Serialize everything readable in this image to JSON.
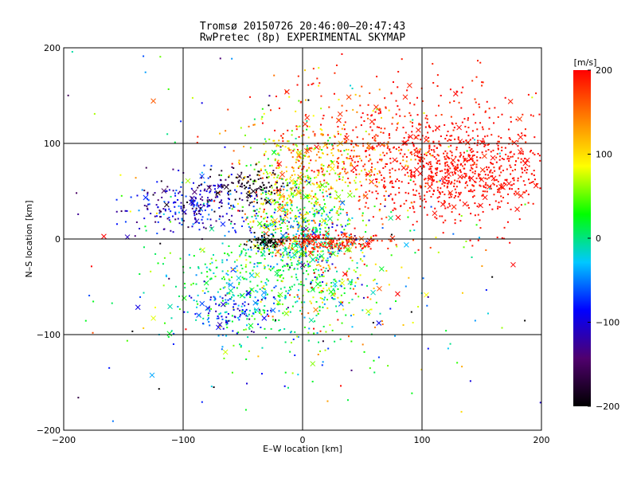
{
  "chart_data": {
    "type": "scatter",
    "title": "Tromsø 20150726 20:46:00–20:47:43",
    "subtitle": "RwPretec (8p) EXPERIMENTAL SKYMAP",
    "xlabel": "E–W location [km]",
    "ylabel": "N–S location [km]",
    "xlim": [
      -200,
      200
    ],
    "ylim": [
      -200,
      200
    ],
    "xticks": [
      -200,
      -100,
      0,
      100,
      200
    ],
    "yticks": [
      -200,
      -100,
      0,
      100,
      200
    ],
    "grid": true,
    "markers": [
      "dot",
      "x"
    ],
    "colorbar": {
      "label": "[m/s]",
      "min": -200,
      "max": 200,
      "ticks": [
        -200,
        -100,
        0,
        100,
        200
      ],
      "colormap": [
        "#000000",
        "#50006e",
        "#0000ff",
        "#00c8ff",
        "#00ff00",
        "#ffff00",
        "#ff8000",
        "#ff0000"
      ]
    },
    "clusters": [
      {
        "cx": 130,
        "cy": 70,
        "sx": 40,
        "sy": 25,
        "n": 700,
        "vmean": 195,
        "vsd": 6
      },
      {
        "cx": 100,
        "cy": 110,
        "sx": 70,
        "sy": 35,
        "n": 350,
        "vmean": 190,
        "vsd": 10
      },
      {
        "cx": 30,
        "cy": 80,
        "sx": 35,
        "sy": 30,
        "n": 300,
        "vmean": 150,
        "vsd": 40
      },
      {
        "cx": -5,
        "cy": 50,
        "sx": 22,
        "sy": 40,
        "n": 400,
        "vmean": 80,
        "vsd": 40
      },
      {
        "cx": -95,
        "cy": 35,
        "sx": 28,
        "sy": 15,
        "n": 280,
        "vmean": -110,
        "vsd": 40
      },
      {
        "cx": -40,
        "cy": 55,
        "sx": 15,
        "sy": 10,
        "n": 100,
        "vmean": -190,
        "vsd": 15
      },
      {
        "cx": 0,
        "cy": 0,
        "sx": 25,
        "sy": 25,
        "n": 450,
        "vmean": 0,
        "vsd": 60
      },
      {
        "cx": 20,
        "cy": -3,
        "sx": 25,
        "sy": 5,
        "n": 200,
        "vmean": 185,
        "vsd": 15
      },
      {
        "cx": -30,
        "cy": -3,
        "sx": 8,
        "sy": 4,
        "n": 60,
        "vmean": -200,
        "vsd": 5
      },
      {
        "cx": -40,
        "cy": -50,
        "sx": 35,
        "sy": 30,
        "n": 350,
        "vmean": 10,
        "vsd": 30
      },
      {
        "cx": -60,
        "cy": -75,
        "sx": 18,
        "sy": 12,
        "n": 100,
        "vmean": -80,
        "vsd": 30
      },
      {
        "cx": 30,
        "cy": -60,
        "sx": 30,
        "sy": 30,
        "n": 150,
        "vmean": 50,
        "vsd": 80
      },
      {
        "cx": 0,
        "cy": 0,
        "sx": 110,
        "sy": 95,
        "n": 300,
        "vmean": 20,
        "vsd": 120
      }
    ]
  }
}
